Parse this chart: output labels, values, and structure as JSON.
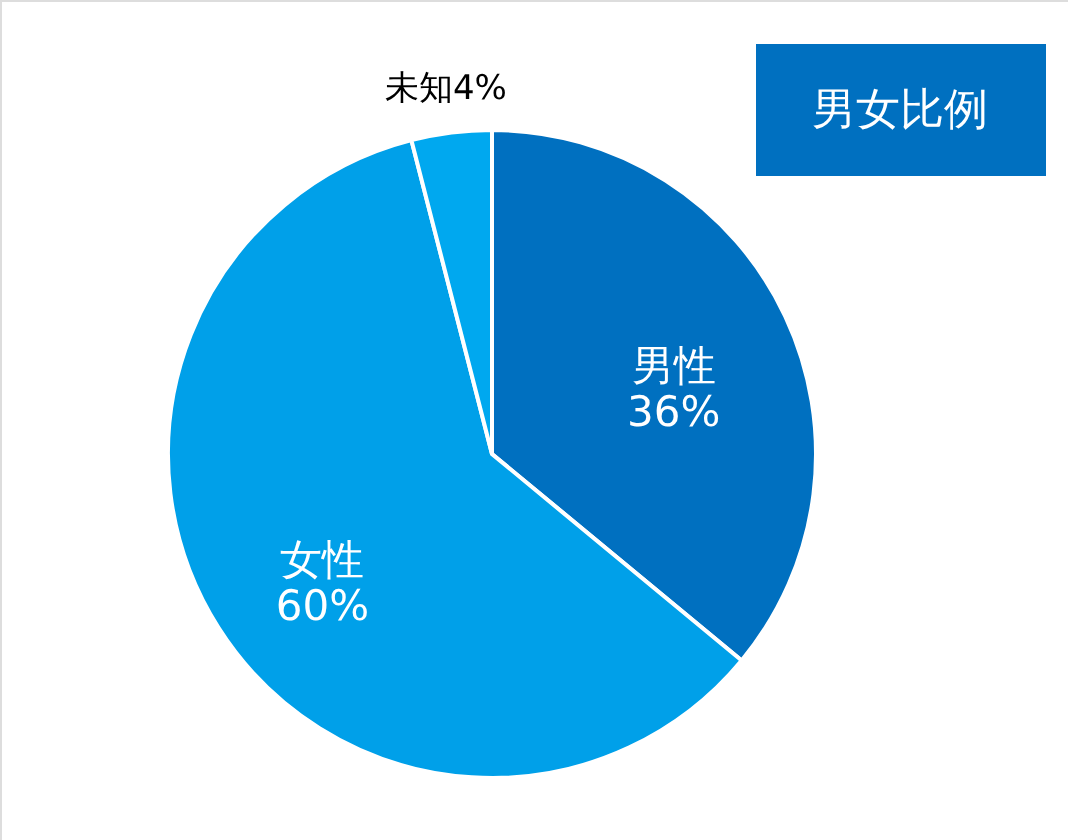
{
  "chart_data": {
    "type": "pie",
    "title": "男女比例",
    "categories": [
      "男性",
      "女性",
      "未知"
    ],
    "values": [
      36,
      60,
      4
    ],
    "value_labels": [
      "36%",
      "60%",
      "4%"
    ],
    "colors": [
      "#0070c0",
      "#00a0e9",
      "#00a8ef"
    ]
  }
}
